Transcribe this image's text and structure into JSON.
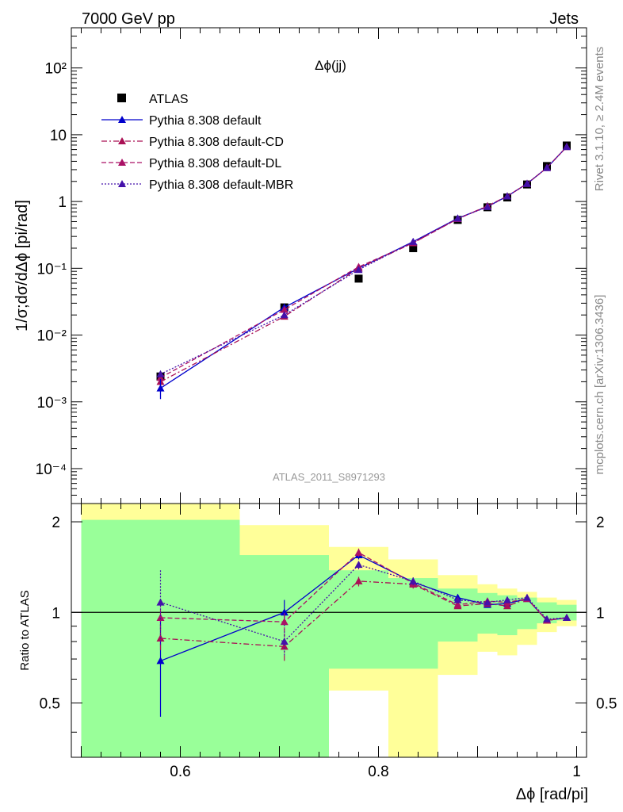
{
  "header": {
    "left": "7000 GeV pp",
    "right": "Jets"
  },
  "side_text": {
    "rivet": "Rivet 3.1.10, ≥ 2.4M events",
    "mcplots": "mcplots.cern.ch [arXiv:1306.3436]"
  },
  "analysis_label": "ATLAS_2011_S8971293",
  "colors": {
    "atlas": "#000000",
    "default": "#0000cc",
    "cd": "#aa1155",
    "dl": "#aa1166",
    "mbr": "#4411aa",
    "band_yellow": "#ffff99",
    "band_green": "#99ff99"
  },
  "chart_data": [
    {
      "type": "line",
      "title": "Δϕ(jj)",
      "ylabel": "1/σ;dσ/dΔϕ [pi/rad]",
      "xlabel": "Δϕ [rad/pi]",
      "yscale": "log",
      "xlim": [
        0.49,
        1.01
      ],
      "ylim": [
        3e-05,
        400
      ],
      "ytick_labels": [
        "10⁻⁴",
        "10⁻³",
        "10⁻²",
        "10⁻¹",
        "1",
        "10",
        "10²"
      ],
      "legend_placement": "top-left",
      "x": [
        0.58,
        0.705,
        0.78,
        0.835,
        0.88,
        0.91,
        0.93,
        0.95,
        0.97,
        0.99
      ],
      "series": [
        {
          "name": "ATLAS",
          "marker": "square",
          "values": [
            0.0024,
            0.026,
            0.07,
            0.2,
            0.53,
            0.82,
            1.15,
            1.8,
            3.4,
            6.9
          ]
        },
        {
          "name": "Pythia 8.308 default",
          "style": "solid",
          "marker": "triangle",
          "values": [
            0.0016,
            0.026,
            0.1,
            0.25,
            0.56,
            0.84,
            1.2,
            1.85,
            3.2,
            6.6
          ]
        },
        {
          "name": "Pythia 8.308 default-CD",
          "style": "dashdot",
          "marker": "triangle",
          "values": [
            0.002,
            0.019,
            0.1,
            0.24,
            0.55,
            0.86,
            1.2,
            1.85,
            3.2,
            6.6
          ]
        },
        {
          "name": "Pythia 8.308 default-DL",
          "style": "dashed",
          "marker": "triangle",
          "values": [
            0.0023,
            0.024,
            0.105,
            0.24,
            0.55,
            0.85,
            1.2,
            1.85,
            3.2,
            6.6
          ]
        },
        {
          "name": "Pythia 8.308 default-MBR",
          "style": "dotted",
          "marker": "triangle",
          "values": [
            0.0026,
            0.02,
            0.095,
            0.25,
            0.56,
            0.83,
            1.2,
            1.85,
            3.2,
            6.6
          ]
        }
      ]
    },
    {
      "type": "line",
      "ylabel": "Ratio to ATLAS",
      "xlabel": "Δϕ [rad/pi]",
      "xlim": [
        0.49,
        1.01
      ],
      "ylim": [
        0.33,
        2.3
      ],
      "xticks": [
        0.6,
        0.8,
        1
      ],
      "xtick_labels": [
        "0.6",
        "0.8",
        "1"
      ],
      "yticks": [
        0.5,
        1,
        2
      ],
      "ytick_labels": [
        "0.5",
        "1",
        "2"
      ],
      "x": [
        0.58,
        0.705,
        0.78,
        0.835,
        0.88,
        0.91,
        0.93,
        0.95,
        0.97,
        0.99
      ],
      "bands": {
        "edges": [
          0.5,
          0.66,
          0.75,
          0.81,
          0.86,
          0.9,
          0.92,
          0.94,
          0.96,
          0.98,
          1.0
        ],
        "yellow_low": [
          0.33,
          0.55,
          0.55,
          0.33,
          0.62,
          0.74,
          0.72,
          0.78,
          0.86,
          0.9
        ],
        "yellow_high": [
          2.3,
          1.95,
          1.65,
          1.5,
          1.33,
          1.24,
          1.2,
          1.17,
          1.12,
          1.1
        ],
        "green_low": [
          0.33,
          0.33,
          0.65,
          0.65,
          0.8,
          0.85,
          0.84,
          0.88,
          0.92,
          0.94
        ],
        "green_high": [
          2.03,
          1.55,
          1.38,
          1.3,
          1.2,
          1.16,
          1.14,
          1.12,
          1.08,
          1.06
        ]
      },
      "series": [
        {
          "name": "Pythia 8.308 default",
          "style": "solid",
          "values": [
            0.69,
            1.0,
            1.55,
            1.26,
            1.12,
            1.06,
            1.07,
            1.11,
            0.94,
            0.96
          ],
          "err": [
            0.24,
            0.1,
            0.05,
            0.04,
            0.02,
            0.02,
            0.02,
            0.02,
            0.02,
            0.02
          ]
        },
        {
          "name": "Pythia 8.308 default-CD",
          "style": "dashdot",
          "values": [
            0.82,
            0.77,
            1.27,
            1.24,
            1.05,
            1.07,
            1.05,
            1.11,
            0.94,
            0.96
          ],
          "err": [
            0.07,
            0.08,
            0.05,
            0.04,
            0.02,
            0.02,
            0.02,
            0.02,
            0.02,
            0.02
          ]
        },
        {
          "name": "Pythia 8.308 default-DL",
          "style": "dashed",
          "values": [
            0.96,
            0.93,
            1.58,
            1.25,
            1.06,
            1.09,
            1.08,
            1.11,
            0.94,
            0.96
          ],
          "err": [
            0.08,
            0.07,
            0.05,
            0.04,
            0.02,
            0.02,
            0.02,
            0.02,
            0.02,
            0.02
          ]
        },
        {
          "name": "Pythia 8.308 default-MBR",
          "style": "dotted",
          "values": [
            1.08,
            0.8,
            1.44,
            1.27,
            1.1,
            1.08,
            1.1,
            1.12,
            0.95,
            0.96
          ],
          "err": [
            0.3,
            0.08,
            0.05,
            0.04,
            0.02,
            0.02,
            0.02,
            0.02,
            0.02,
            0.02
          ]
        }
      ]
    }
  ]
}
